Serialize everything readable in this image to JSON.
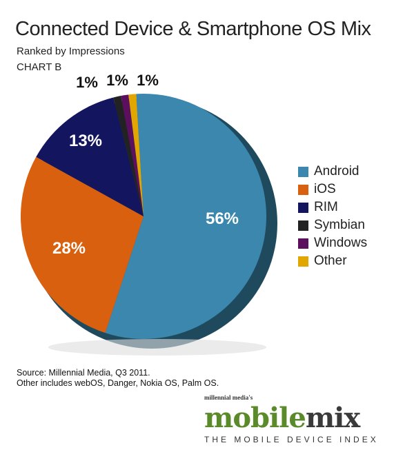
{
  "chart_data": {
    "type": "pie",
    "title": "Connected Device & Smartphone OS Mix",
    "subtitle": "Ranked by Impressions",
    "label": "CHART B",
    "legend_position": "right",
    "categories": [
      "Android",
      "iOS",
      "RIM",
      "Symbian",
      "Windows",
      "Other"
    ],
    "values": [
      56,
      28,
      13,
      1,
      1,
      1
    ],
    "value_labels": [
      "56%",
      "28%",
      "13%",
      "1%",
      "1%",
      "1%"
    ],
    "colors": [
      "#3b87ae",
      "#d8600e",
      "#13165e",
      "#222222",
      "#5c0f5c",
      "#e2a600"
    ]
  },
  "footer": {
    "source": "Source: Millennial Media, Q3 2011.",
    "note": "Other includes webOS, Danger, Nokia OS, Palm OS."
  },
  "logo": {
    "small": "millennial media's",
    "main_a": "mobile",
    "main_b": "mix",
    "tagline": "THE MOBILE DEVICE INDEX"
  }
}
